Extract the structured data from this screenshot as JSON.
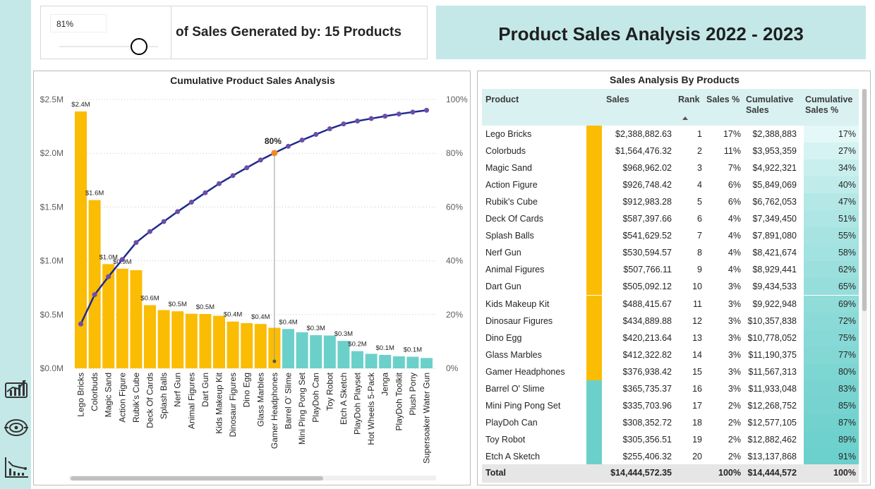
{
  "sidebar": {
    "icons": [
      "dashboard-chart-icon",
      "target-icon",
      "line-chart-icon"
    ]
  },
  "slicer": {
    "value": "81%",
    "level": 0.81
  },
  "headline": {
    "text": "of Sales Generated by: 15 Products"
  },
  "page_title": "Product Sales Analysis 2022 - 2023",
  "chart_data": {
    "type": "bar",
    "title": "Cumulative Product Sales Analysis",
    "categories": [
      "Lego Bricks",
      "Colorbuds",
      "Magic Sand",
      "Action Figure",
      "Rubik's Cube",
      "Deck Of Cards",
      "Splash Balls",
      "Nerf Gun",
      "Animal Figures",
      "Dart Gun",
      "Kids Makeup Kit",
      "Dinosaur Figures",
      "Dino Egg",
      "Glass Marbles",
      "Gamer Headphones",
      "Barrel O' Slime",
      "Mini Ping Pong Set",
      "PlayDoh Can",
      "Toy Robot",
      "Etch A Sketch",
      "PlayDoh Playset",
      "Hot Wheels 5-Pack",
      "Jenga",
      "PlayDoh Toolkit",
      "Plush Pony",
      "Supersoaker Water Gun"
    ],
    "series": [
      {
        "type": "bar",
        "values": [
          2388882.63,
          1564476.32,
          968962.02,
          926748.42,
          912983.28,
          587397.66,
          541629.52,
          530594.57,
          507766.11,
          505092.12,
          488415.67,
          434889.88,
          420213.64,
          412322.82,
          376938.42,
          365735.37,
          335703.96,
          308352.72,
          305356.51,
          255406.32,
          160000,
          135000,
          125000,
          112000,
          108000,
          96000
        ]
      },
      {
        "type": "line",
        "values": [
          16.5,
          27.4,
          34.1,
          40.5,
          46.8,
          50.9,
          54.6,
          58.3,
          61.8,
          65.3,
          68.7,
          71.7,
          74.6,
          77.5,
          80.1,
          82.6,
          84.9,
          87.0,
          89.1,
          90.9,
          92.0,
          92.9,
          93.8,
          94.6,
          95.3,
          96.0
        ]
      }
    ],
    "bar_labels": [
      "$2.4M",
      "$1.6M",
      "$1.0M",
      "$0.9M",
      "",
      "$0.6M",
      "",
      "$0.5M",
      "",
      "$0.5M",
      "",
      "$0.4M",
      "",
      "$0.4M",
      "",
      "$0.4M",
      "",
      "$0.3M",
      "",
      "$0.3M",
      "$0.2M",
      "",
      "$0.1M",
      "",
      "$0.1M",
      ""
    ],
    "highlight_index": 14,
    "highlight_label": "80%",
    "y_ticks": [
      "$0.0M",
      "$0.5M",
      "$1.0M",
      "$1.5M",
      "$2.0M",
      "$2.5M"
    ],
    "y2_ticks": [
      "0%",
      "20%",
      "40%",
      "60%",
      "80%",
      "100%"
    ],
    "ylim": [
      0,
      2500000
    ],
    "y2lim": [
      0,
      100
    ],
    "colors": {
      "top": "#fbbc04",
      "rest": "#6cd0ca",
      "line": "#1f2a8c",
      "marker": "#6a4fa8",
      "highlight": "#f08a24"
    }
  },
  "table": {
    "title": "Sales Analysis By Products",
    "headers": {
      "product": "Product",
      "sales": "Sales",
      "rank": "Rank",
      "sales_pct": "Sales %",
      "cum_sales": "Cumulative Sales",
      "cum_pct": "Cumulative Sales %"
    },
    "rows": [
      {
        "product": "Lego Bricks",
        "sales": "$2,388,882.63",
        "rank": "1",
        "pct": "17%",
        "cum": "$2,388,883",
        "cum_pct": "17%",
        "cum_value": 17,
        "top": true
      },
      {
        "product": "Colorbuds",
        "sales": "$1,564,476.32",
        "rank": "2",
        "pct": "11%",
        "cum": "$3,953,359",
        "cum_pct": "27%",
        "cum_value": 27,
        "top": true
      },
      {
        "product": "Magic Sand",
        "sales": "$968,962.02",
        "rank": "3",
        "pct": "7%",
        "cum": "$4,922,321",
        "cum_pct": "34%",
        "cum_value": 34,
        "top": true
      },
      {
        "product": "Action Figure",
        "sales": "$926,748.42",
        "rank": "4",
        "pct": "6%",
        "cum": "$5,849,069",
        "cum_pct": "40%",
        "cum_value": 40,
        "top": true
      },
      {
        "product": "Rubik's Cube",
        "sales": "$912,983.28",
        "rank": "5",
        "pct": "6%",
        "cum": "$6,762,053",
        "cum_pct": "47%",
        "cum_value": 47,
        "top": true
      },
      {
        "product": "Deck Of Cards",
        "sales": "$587,397.66",
        "rank": "6",
        "pct": "4%",
        "cum": "$7,349,450",
        "cum_pct": "51%",
        "cum_value": 51,
        "top": true
      },
      {
        "product": "Splash Balls",
        "sales": "$541,629.52",
        "rank": "7",
        "pct": "4%",
        "cum": "$7,891,080",
        "cum_pct": "55%",
        "cum_value": 55,
        "top": true
      },
      {
        "product": "Nerf Gun",
        "sales": "$530,594.57",
        "rank": "8",
        "pct": "4%",
        "cum": "$8,421,674",
        "cum_pct": "58%",
        "cum_value": 58,
        "top": true
      },
      {
        "product": "Animal Figures",
        "sales": "$507,766.11",
        "rank": "9",
        "pct": "4%",
        "cum": "$8,929,441",
        "cum_pct": "62%",
        "cum_value": 62,
        "top": true
      },
      {
        "product": "Dart Gun",
        "sales": "$505,092.12",
        "rank": "10",
        "pct": "3%",
        "cum": "$9,434,533",
        "cum_pct": "65%",
        "cum_value": 65,
        "top": true
      },
      {
        "product": "Kids Makeup Kit",
        "sales": "$488,415.67",
        "rank": "11",
        "pct": "3%",
        "cum": "$9,922,948",
        "cum_pct": "69%",
        "cum_value": 69,
        "top": true
      },
      {
        "product": "Dinosaur Figures",
        "sales": "$434,889.88",
        "rank": "12",
        "pct": "3%",
        "cum": "$10,357,838",
        "cum_pct": "72%",
        "cum_value": 72,
        "top": true
      },
      {
        "product": "Dino Egg",
        "sales": "$420,213.64",
        "rank": "13",
        "pct": "3%",
        "cum": "$10,778,052",
        "cum_pct": "75%",
        "cum_value": 75,
        "top": true
      },
      {
        "product": "Glass Marbles",
        "sales": "$412,322.82",
        "rank": "14",
        "pct": "3%",
        "cum": "$11,190,375",
        "cum_pct": "77%",
        "cum_value": 77,
        "top": true
      },
      {
        "product": "Gamer Headphones",
        "sales": "$376,938.42",
        "rank": "15",
        "pct": "3%",
        "cum": "$11,567,313",
        "cum_pct": "80%",
        "cum_value": 80,
        "top": true
      },
      {
        "product": "Barrel O' Slime",
        "sales": "$365,735.37",
        "rank": "16",
        "pct": "3%",
        "cum": "$11,933,048",
        "cum_pct": "83%",
        "cum_value": 83,
        "top": false
      },
      {
        "product": "Mini Ping Pong Set",
        "sales": "$335,703.96",
        "rank": "17",
        "pct": "2%",
        "cum": "$12,268,752",
        "cum_pct": "85%",
        "cum_value": 85,
        "top": false
      },
      {
        "product": "PlayDoh Can",
        "sales": "$308,352.72",
        "rank": "18",
        "pct": "2%",
        "cum": "$12,577,105",
        "cum_pct": "87%",
        "cum_value": 87,
        "top": false
      },
      {
        "product": "Toy Robot",
        "sales": "$305,356.51",
        "rank": "19",
        "pct": "2%",
        "cum": "$12,882,462",
        "cum_pct": "89%",
        "cum_value": 89,
        "top": false
      },
      {
        "product": "Etch A Sketch",
        "sales": "$255,406.32",
        "rank": "20",
        "pct": "2%",
        "cum": "$13,137,868",
        "cum_pct": "91%",
        "cum_value": 91,
        "top": false
      }
    ],
    "total": {
      "label": "Total",
      "sales": "$14,444,572.35",
      "pct": "100%",
      "cum": "$14,444,572",
      "cum_pct": "100%"
    }
  }
}
